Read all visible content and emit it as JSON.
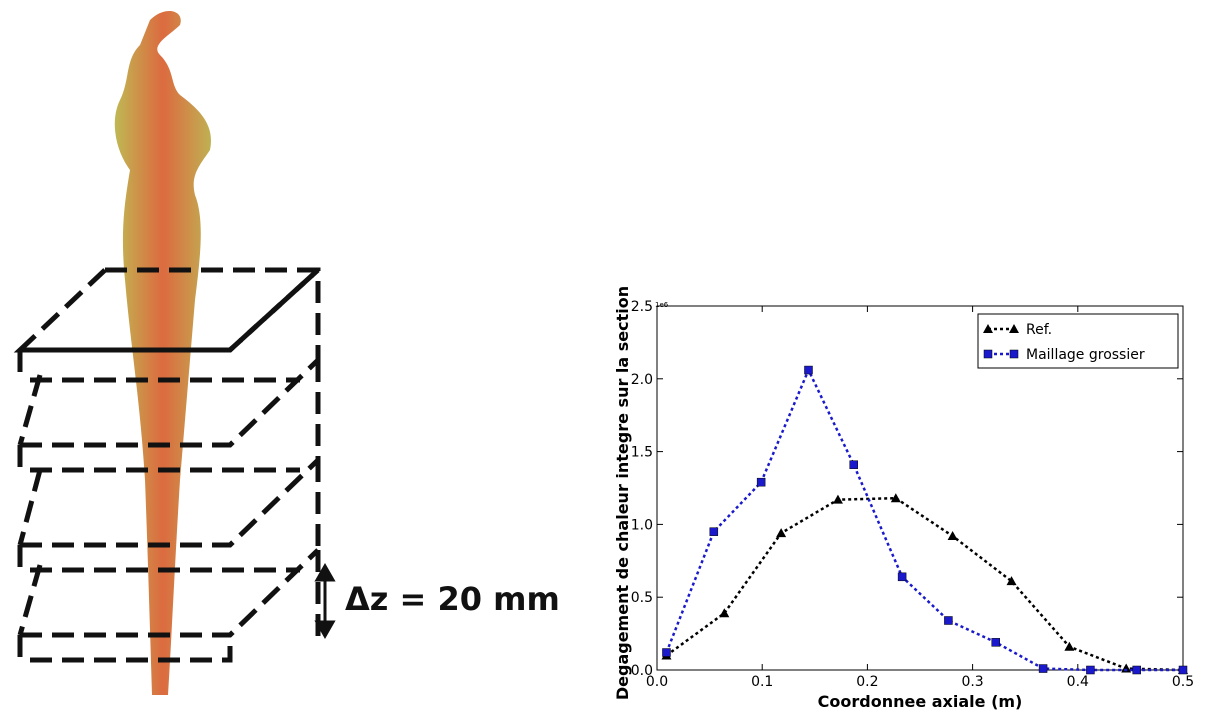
{
  "image_annotation": "Δz = 20 mm",
  "chart_data": {
    "type": "line",
    "xlabel": "Coordonnee axiale (m)",
    "ylabel": "Degagement de chaleur integre sur la section",
    "y_offset_label": "1e6",
    "xlim": [
      0,
      0.5
    ],
    "ylim": [
      0,
      2.5
    ],
    "xticks": [
      {
        "value": 0,
        "label": "0.0"
      },
      0.1,
      0.2,
      0.3,
      0.4,
      0.5
    ],
    "yticks": [
      {
        "value": 0,
        "label": "0.0"
      },
      0.5,
      {
        "value": 1,
        "label": "1.0"
      },
      1.5,
      {
        "value": 2,
        "label": "2.0"
      },
      2.5
    ],
    "legend": "upper right",
    "series": [
      {
        "name": "Ref.",
        "color": "#000000",
        "marker": "triangle",
        "x": [
          0.009,
          0.064,
          0.118,
          0.172,
          0.227,
          0.281,
          0.337,
          0.392,
          0.446,
          0.5
        ],
        "values": [
          0.1,
          0.39,
          0.94,
          1.17,
          1.18,
          0.92,
          0.61,
          0.16,
          0.01,
          0
        ]
      },
      {
        "name": "Maillage grossier",
        "color": "#1a1acc",
        "marker": "square",
        "x": [
          0.009,
          0.054,
          0.099,
          0.144,
          0.187,
          0.233,
          0.277,
          0.322,
          0.367,
          0.412,
          0.456,
          0.5
        ],
        "values": [
          0.12,
          0.95,
          1.29,
          2.06,
          1.41,
          0.64,
          0.34,
          0.19,
          0.01,
          0,
          0,
          0
        ]
      }
    ]
  }
}
